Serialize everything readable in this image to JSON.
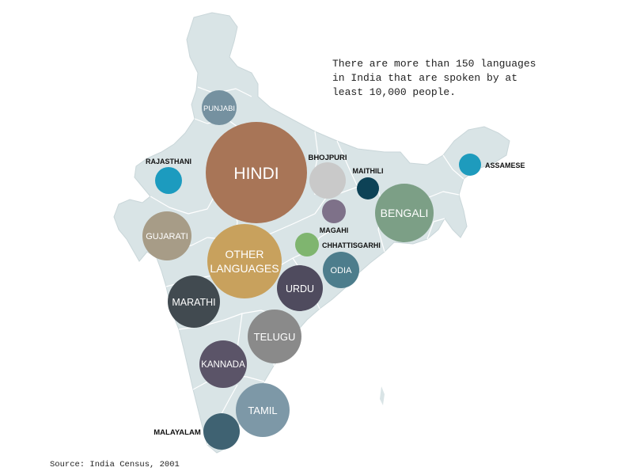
{
  "caption": {
    "lines": [
      "There are more than 150 languages",
      "in India that are spoken by at",
      "least 10,000 people."
    ]
  },
  "source": "Source: India Census, 2001",
  "map": {
    "fill": "#d9e4e6",
    "border": "#ffffff"
  },
  "languages": [
    {
      "id": "hindi",
      "label": [
        "HINDI"
      ],
      "color": "#a87557",
      "label_inside": true,
      "text_color": "#ffffff"
    },
    {
      "id": "other-languages",
      "label": [
        "OTHER",
        "LANGUAGES"
      ],
      "color": "#c8a15d",
      "label_inside": true,
      "text_color": "#ffffff"
    },
    {
      "id": "bengali",
      "label": [
        "BENGALI"
      ],
      "color": "#7c9f86",
      "label_inside": true,
      "text_color": "#ffffff"
    },
    {
      "id": "telugu",
      "label": [
        "TELUGU"
      ],
      "color": "#8a8a8a",
      "label_inside": true,
      "text_color": "#ffffff"
    },
    {
      "id": "marathi",
      "label": [
        "MARATHI"
      ],
      "color": "#414a50",
      "label_inside": true,
      "text_color": "#ffffff"
    },
    {
      "id": "tamil",
      "label": [
        "TAMIL"
      ],
      "color": "#7d98a7",
      "label_inside": true,
      "text_color": "#ffffff"
    },
    {
      "id": "urdu",
      "label": [
        "URDU"
      ],
      "color": "#4f4b5e",
      "label_inside": true,
      "text_color": "#ffffff"
    },
    {
      "id": "gujarati",
      "label": [
        "GUJARATI"
      ],
      "color": "#a79c87",
      "label_inside": true,
      "text_color": "#ffffff"
    },
    {
      "id": "kannada",
      "label": [
        "KANNADA"
      ],
      "color": "#5b5468",
      "label_inside": true,
      "text_color": "#ffffff"
    },
    {
      "id": "malayalam",
      "label": [
        "MALAYALAM"
      ],
      "color": "#3f6272",
      "label_inside": false,
      "text_color": "#111111"
    },
    {
      "id": "odia",
      "label": [
        "ODIA"
      ],
      "color": "#4d7d8c",
      "label_inside": true,
      "text_color": "#ffffff"
    },
    {
      "id": "punjabi",
      "label": [
        "PUNJABI"
      ],
      "color": "#7591a0",
      "label_inside": true,
      "text_color": "#ffffff"
    },
    {
      "id": "bhojpuri",
      "label": [
        "BHOJPURI"
      ],
      "color": "#c9c9c9",
      "label_inside": false,
      "text_color": "#111111"
    },
    {
      "id": "assamese",
      "label": [
        "ASSAMESE"
      ],
      "color": "#1e9bbd",
      "label_inside": false,
      "text_color": "#111111"
    },
    {
      "id": "rajasthani",
      "label": [
        "RAJASTHANI"
      ],
      "color": "#1c9bbf",
      "label_inside": false,
      "text_color": "#111111"
    },
    {
      "id": "maithili",
      "label": [
        "MAITHILI"
      ],
      "color": "#0d4256",
      "label_inside": false,
      "text_color": "#111111"
    },
    {
      "id": "magahi",
      "label": [
        "MAGAHI"
      ],
      "color": "#7e7189",
      "label_inside": false,
      "text_color": "#111111"
    },
    {
      "id": "chhattisgarhi",
      "label": [
        "CHHATTISGARHI"
      ],
      "color": "#7fb56f",
      "label_inside": false,
      "text_color": "#111111"
    }
  ]
}
